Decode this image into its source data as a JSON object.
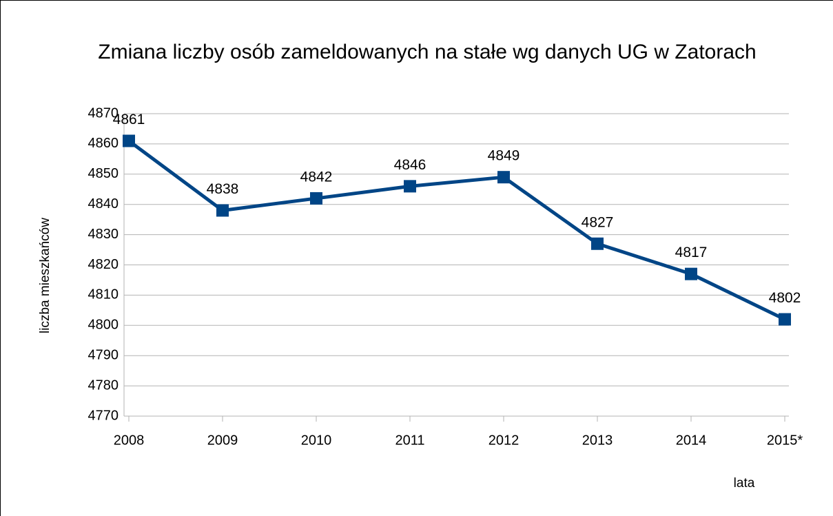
{
  "chart_data": {
    "type": "line",
    "title": "Zmiana liczby osób zameldowanych na stałe wg danych UG w Zatorach",
    "y_label": "liczba mieszkańców",
    "x_label": "lata",
    "categories": [
      "2008",
      "2009",
      "2010",
      "2011",
      "2012",
      "2013",
      "2014",
      "2015*"
    ],
    "values": [
      4861,
      4838,
      4842,
      4846,
      4849,
      4827,
      4817,
      4802
    ],
    "color": "#004586",
    "ylim": [
      4770,
      4870
    ],
    "yticks": [
      4770,
      4780,
      4790,
      4800,
      4810,
      4820,
      4830,
      4840,
      4850,
      4860,
      4870
    ],
    "grid": true
  }
}
